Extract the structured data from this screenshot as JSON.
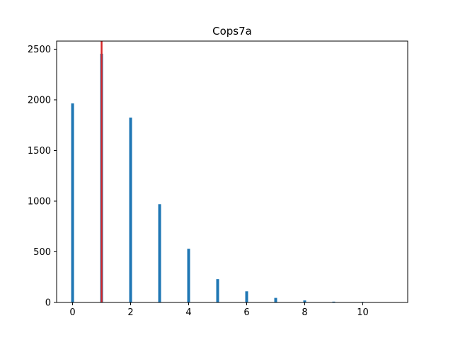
{
  "chart_data": {
    "type": "bar",
    "title": "Cops7a",
    "xlabel": "",
    "ylabel": "",
    "xlim": [
      -0.55,
      11.55
    ],
    "ylim": [
      0,
      2580
    ],
    "x": [
      0,
      1,
      2,
      3,
      4,
      5,
      6,
      7,
      8,
      9,
      10,
      11
    ],
    "values": [
      1965,
      2455,
      1825,
      970,
      530,
      230,
      110,
      45,
      20,
      8,
      5,
      2
    ],
    "bar_color": "#1f77b4",
    "xticks": [
      0,
      2,
      4,
      6,
      8,
      10
    ],
    "yticks": [
      0,
      500,
      1000,
      1500,
      2000,
      2500
    ],
    "vline": {
      "x": 1,
      "color": "#d62728"
    },
    "grid": false,
    "legend": "none"
  }
}
